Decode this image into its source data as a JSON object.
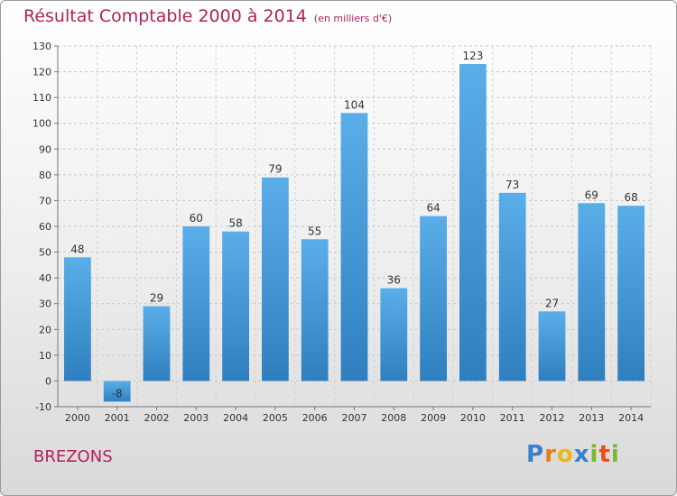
{
  "header": {
    "title": "Résultat Comptable 2000 à 2014",
    "unit": "(en milliers d'€)"
  },
  "footer": {
    "commune": "BREZONS",
    "logo": "Proxiti"
  },
  "colors": {
    "title": "#b0215a",
    "bar_top": "#5aaee8",
    "bar_bottom": "#2f7fc0",
    "logo_letters": [
      "#3a7fd0",
      "#e87d1e",
      "#e8b81e",
      "#3a7fd0",
      "#7ab82e",
      "#e84e1e",
      "#7ab82e"
    ]
  },
  "chart_data": {
    "type": "bar",
    "title": "Résultat Comptable 2000 à 2014",
    "subtitle": "(en milliers d'€)",
    "categories": [
      "2000",
      "2001",
      "2002",
      "2003",
      "2004",
      "2005",
      "2006",
      "2007",
      "2008",
      "2009",
      "2010",
      "2011",
      "2012",
      "2013",
      "2014"
    ],
    "values": [
      48,
      -8,
      29,
      60,
      58,
      79,
      55,
      104,
      36,
      64,
      123,
      73,
      27,
      69,
      68
    ],
    "value_labels": [
      "48",
      "-8",
      "29",
      "60",
      "58",
      "79",
      "55",
      "104",
      "36",
      "64",
      "123",
      "73",
      "27",
      "69",
      "68"
    ],
    "ylim": [
      -10,
      130
    ],
    "yticks": [
      -10,
      0,
      10,
      20,
      30,
      40,
      50,
      60,
      70,
      80,
      90,
      100,
      110,
      120,
      130
    ],
    "grid": true
  }
}
